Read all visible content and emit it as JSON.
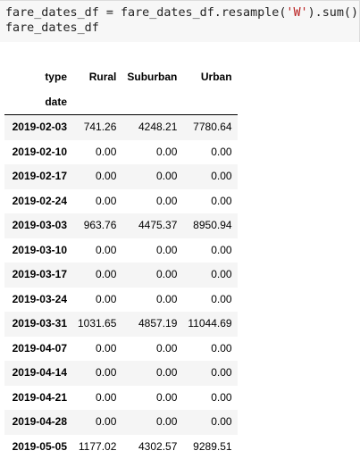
{
  "code": {
    "line1_var": "fare_dates_df = fare_dates_df.resample(",
    "line1_arg": "'W'",
    "line1_tail": ").sum()",
    "line2": "fare_dates_df"
  },
  "table": {
    "columns_name": "type",
    "index_name": "date",
    "columns": [
      "Rural",
      "Suburban",
      "Urban"
    ],
    "rows": [
      {
        "date": "2019-02-03",
        "Rural": "741.26",
        "Suburban": "4248.21",
        "Urban": "7780.64"
      },
      {
        "date": "2019-02-10",
        "Rural": "0.00",
        "Suburban": "0.00",
        "Urban": "0.00"
      },
      {
        "date": "2019-02-17",
        "Rural": "0.00",
        "Suburban": "0.00",
        "Urban": "0.00"
      },
      {
        "date": "2019-02-24",
        "Rural": "0.00",
        "Suburban": "0.00",
        "Urban": "0.00"
      },
      {
        "date": "2019-03-03",
        "Rural": "963.76",
        "Suburban": "4475.37",
        "Urban": "8950.94"
      },
      {
        "date": "2019-03-10",
        "Rural": "0.00",
        "Suburban": "0.00",
        "Urban": "0.00"
      },
      {
        "date": "2019-03-17",
        "Rural": "0.00",
        "Suburban": "0.00",
        "Urban": "0.00"
      },
      {
        "date": "2019-03-24",
        "Rural": "0.00",
        "Suburban": "0.00",
        "Urban": "0.00"
      },
      {
        "date": "2019-03-31",
        "Rural": "1031.65",
        "Suburban": "4857.19",
        "Urban": "11044.69"
      },
      {
        "date": "2019-04-07",
        "Rural": "0.00",
        "Suburban": "0.00",
        "Urban": "0.00"
      },
      {
        "date": "2019-04-14",
        "Rural": "0.00",
        "Suburban": "0.00",
        "Urban": "0.00"
      },
      {
        "date": "2019-04-21",
        "Rural": "0.00",
        "Suburban": "0.00",
        "Urban": "0.00"
      },
      {
        "date": "2019-04-28",
        "Rural": "0.00",
        "Suburban": "0.00",
        "Urban": "0.00"
      },
      {
        "date": "2019-05-05",
        "Rural": "1177.02",
        "Suburban": "4302.57",
        "Urban": "9289.51"
      }
    ]
  },
  "colors": {
    "code_background": "#f7f7f7",
    "string_literal": "#ba2121",
    "row_stripe": "#f5f5f5"
  }
}
